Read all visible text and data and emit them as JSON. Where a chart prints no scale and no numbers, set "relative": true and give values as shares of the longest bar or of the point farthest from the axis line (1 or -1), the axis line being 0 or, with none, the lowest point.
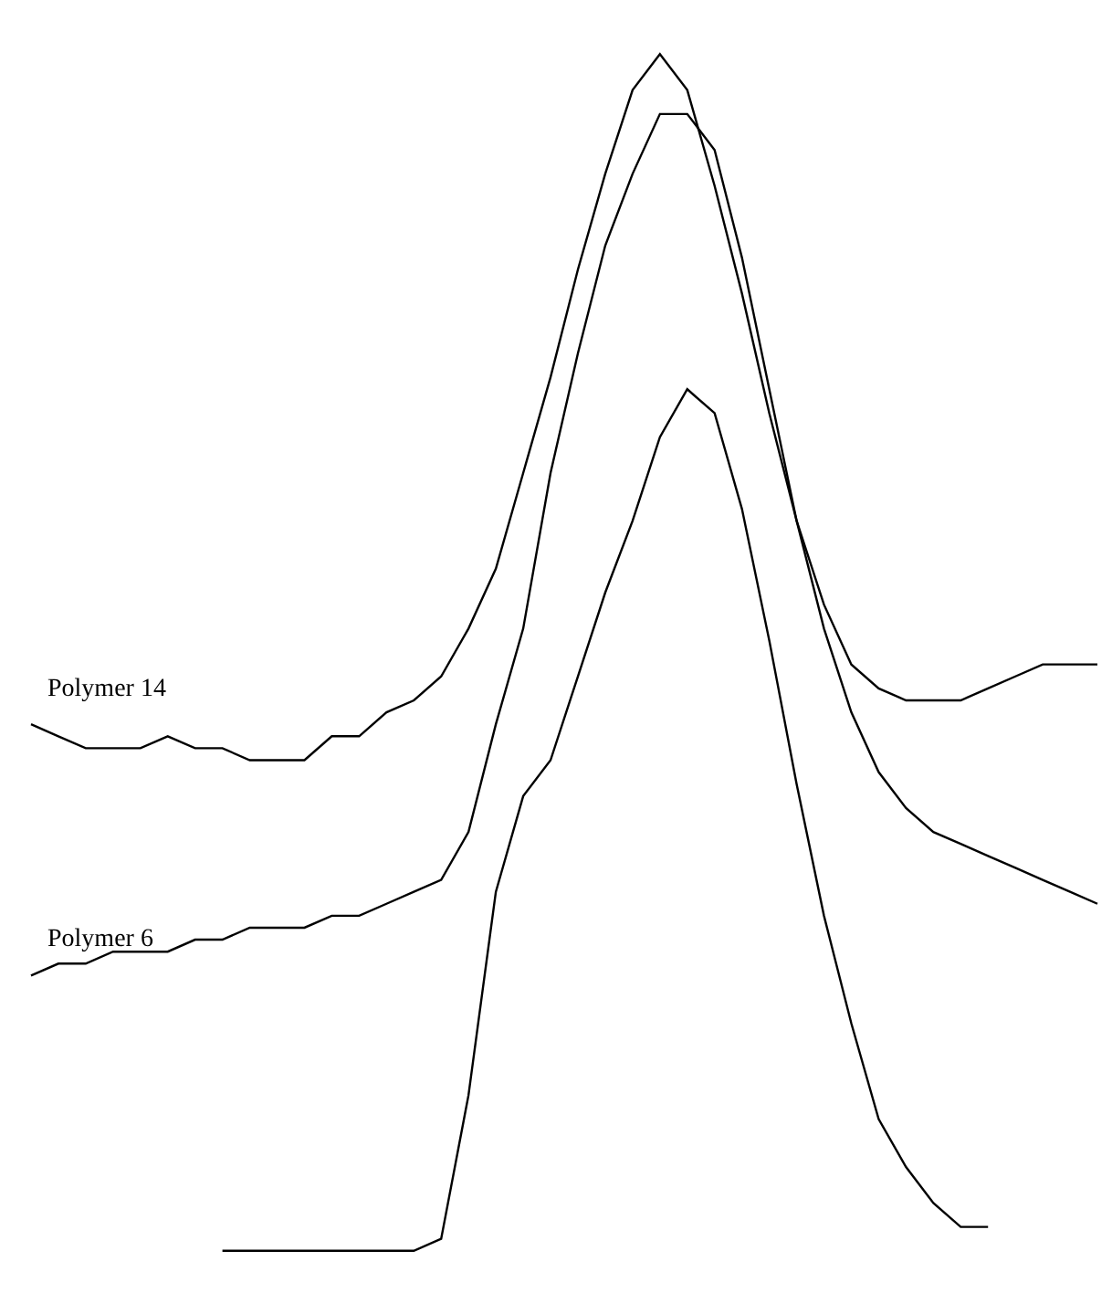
{
  "chart_data": {
    "type": "line",
    "relative": true,
    "legend": false,
    "marker": "none",
    "line_style": "solid",
    "categories": [
      null,
      null,
      null,
      null,
      null,
      null,
      null,
      null,
      null,
      null,
      null,
      null,
      null,
      null,
      null,
      null,
      null,
      null,
      null,
      null,
      null,
      null,
      null,
      null,
      null,
      null,
      null,
      null,
      null,
      null,
      null,
      null,
      null,
      null,
      null,
      null,
      null,
      null,
      null,
      null
    ],
    "series": [
      {
        "name": "Polymer 14",
        "color": "#000000",
        "values": [
          0.44,
          0.43,
          0.42,
          0.42,
          0.42,
          0.43,
          0.42,
          0.42,
          0.41,
          0.41,
          0.41,
          0.43,
          0.43,
          0.45,
          0.46,
          0.48,
          0.52,
          0.57,
          0.65,
          0.73,
          0.82,
          0.9,
          0.97,
          1,
          0.97,
          0.89,
          0.8,
          0.7,
          0.61,
          0.54,
          0.49,
          0.47,
          0.46,
          0.46,
          0.46,
          0.47,
          0.48,
          0.49,
          0.49,
          0.49
        ]
      },
      {
        "name": "Polymer 6",
        "color": "#000000",
        "values": [
          0.23,
          0.24,
          0.24,
          0.25,
          0.25,
          0.25,
          0.26,
          0.26,
          0.27,
          0.27,
          0.27,
          0.28,
          0.28,
          0.29,
          0.3,
          0.31,
          0.35,
          0.44,
          0.52,
          0.65,
          0.75,
          0.84,
          0.9,
          0.95,
          0.95,
          0.92,
          0.83,
          0.72,
          0.61,
          0.52,
          0.45,
          0.4,
          0.37,
          0.35,
          0.34,
          0.33,
          0.32,
          0.31,
          0.3,
          0.29
        ]
      },
      {
        "color": "#000000",
        "values": [
          null,
          null,
          null,
          null,
          null,
          null,
          null,
          0,
          0,
          0,
          0,
          0,
          0,
          0,
          0,
          0.01,
          0.13,
          0.3,
          0.38,
          0.41,
          0.48,
          0.55,
          0.61,
          0.68,
          0.72,
          0.7,
          0.62,
          0.51,
          0.39,
          0.28,
          0.19,
          0.11,
          0.07,
          0.04,
          0.02,
          0.02,
          null,
          null,
          null,
          null
        ]
      }
    ]
  }
}
